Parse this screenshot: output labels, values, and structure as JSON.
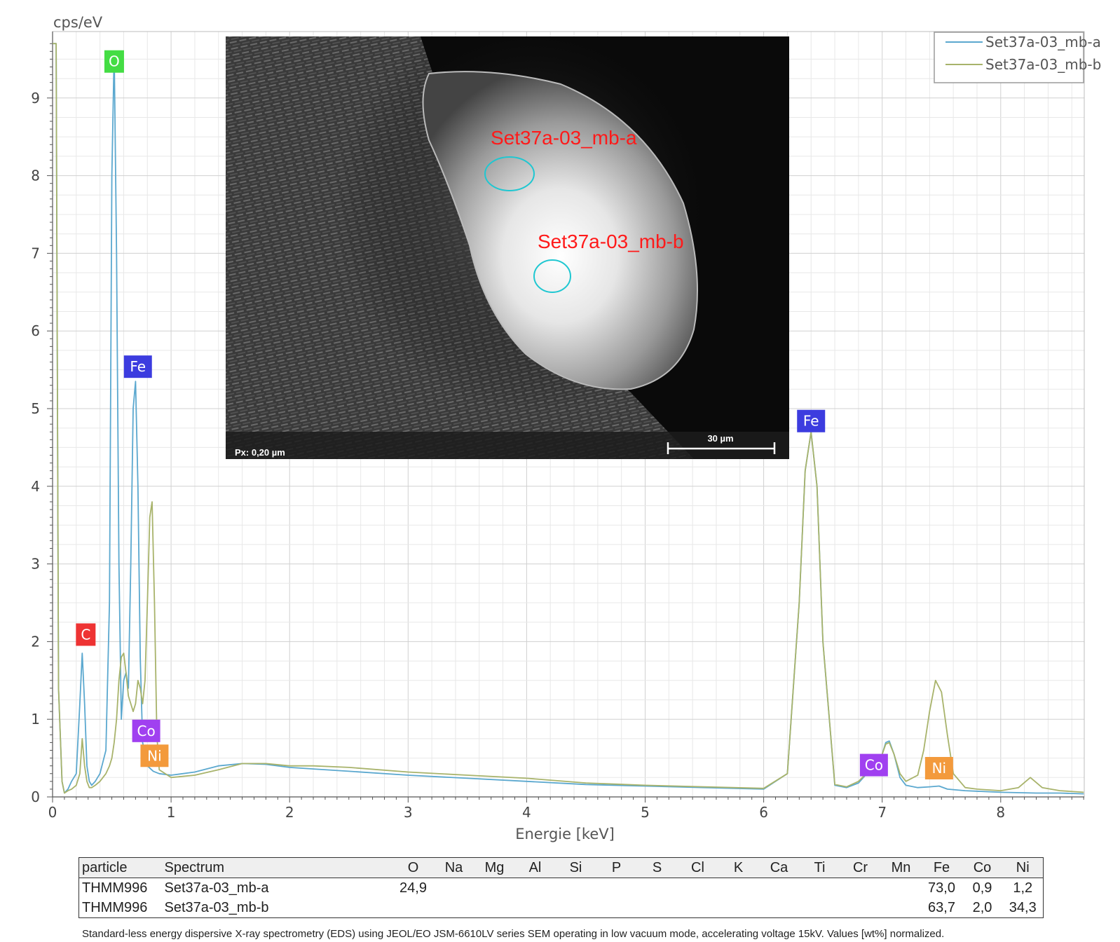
{
  "chart_data": {
    "type": "line",
    "title": "",
    "xlabel": "Energie [keV]",
    "ylabel": "cps/eV",
    "xlim": [
      0,
      8.7
    ],
    "ylim": [
      0,
      9.7
    ],
    "x_ticks": [
      "0",
      "1",
      "2",
      "3",
      "4",
      "5",
      "6",
      "7",
      "8"
    ],
    "y_ticks": [
      "0",
      "1",
      "2",
      "3",
      "4",
      "5",
      "6",
      "7",
      "8",
      "9"
    ],
    "grid": true,
    "legend_position": "top-right",
    "series": [
      {
        "name": "Set37a-03_mb-a",
        "color": "#5ba8cf",
        "x": [
          0.0,
          0.03,
          0.05,
          0.08,
          0.1,
          0.13,
          0.16,
          0.2,
          0.23,
          0.25,
          0.27,
          0.29,
          0.31,
          0.33,
          0.36,
          0.4,
          0.45,
          0.48,
          0.5,
          0.52,
          0.54,
          0.56,
          0.58,
          0.6,
          0.62,
          0.64,
          0.66,
          0.68,
          0.7,
          0.72,
          0.74,
          0.76,
          0.8,
          0.85,
          0.9,
          1.0,
          1.2,
          1.4,
          1.6,
          1.8,
          2.0,
          2.2,
          2.5,
          3.0,
          3.5,
          4.0,
          4.5,
          5.0,
          5.5,
          6.0,
          6.2,
          6.3,
          6.35,
          6.4,
          6.45,
          6.5,
          6.6,
          6.7,
          6.8,
          6.9,
          7.0,
          7.03,
          7.06,
          7.1,
          7.15,
          7.2,
          7.3,
          7.4,
          7.48,
          7.55,
          7.7,
          8.0,
          8.3,
          8.5,
          8.7
        ],
        "y": [
          9.7,
          9.7,
          1.4,
          0.2,
          0.05,
          0.1,
          0.2,
          0.3,
          1.2,
          1.85,
          1.2,
          0.4,
          0.2,
          0.15,
          0.2,
          0.3,
          0.6,
          2.5,
          8.0,
          9.6,
          7.0,
          3.0,
          1.0,
          1.5,
          1.6,
          1.4,
          3.0,
          5.0,
          5.35,
          4.0,
          1.8,
          0.7,
          0.4,
          0.33,
          0.3,
          0.28,
          0.32,
          0.4,
          0.43,
          0.42,
          0.38,
          0.36,
          0.33,
          0.28,
          0.24,
          0.2,
          0.16,
          0.14,
          0.12,
          0.1,
          0.3,
          2.5,
          4.2,
          4.7,
          4.0,
          2.0,
          0.15,
          0.12,
          0.18,
          0.35,
          0.55,
          0.7,
          0.72,
          0.55,
          0.25,
          0.15,
          0.12,
          0.13,
          0.14,
          0.1,
          0.08,
          0.06,
          0.05,
          0.05,
          0.04
        ]
      },
      {
        "name": "Set37a-03_mb-b",
        "color": "#a8b36b",
        "x": [
          0.0,
          0.03,
          0.05,
          0.08,
          0.1,
          0.13,
          0.16,
          0.2,
          0.23,
          0.25,
          0.27,
          0.29,
          0.31,
          0.33,
          0.36,
          0.4,
          0.45,
          0.48,
          0.5,
          0.52,
          0.54,
          0.56,
          0.58,
          0.6,
          0.62,
          0.64,
          0.66,
          0.68,
          0.7,
          0.72,
          0.74,
          0.76,
          0.78,
          0.8,
          0.82,
          0.84,
          0.86,
          0.88,
          0.9,
          1.0,
          1.2,
          1.4,
          1.6,
          1.8,
          2.0,
          2.2,
          2.5,
          3.0,
          3.5,
          4.0,
          4.5,
          5.0,
          5.5,
          6.0,
          6.2,
          6.3,
          6.35,
          6.4,
          6.45,
          6.5,
          6.6,
          6.7,
          6.8,
          6.9,
          7.0,
          7.03,
          7.06,
          7.1,
          7.15,
          7.2,
          7.3,
          7.35,
          7.4,
          7.45,
          7.5,
          7.55,
          7.6,
          7.7,
          7.8,
          8.0,
          8.15,
          8.25,
          8.35,
          8.5,
          8.7
        ],
        "y": [
          9.7,
          9.7,
          1.4,
          0.2,
          0.05,
          0.08,
          0.1,
          0.15,
          0.3,
          0.75,
          0.4,
          0.2,
          0.12,
          0.12,
          0.15,
          0.2,
          0.3,
          0.4,
          0.5,
          0.7,
          1.0,
          1.5,
          1.8,
          1.85,
          1.6,
          1.3,
          1.2,
          1.1,
          1.2,
          1.5,
          1.4,
          1.2,
          1.5,
          2.5,
          3.6,
          3.8,
          2.5,
          0.8,
          0.35,
          0.25,
          0.28,
          0.35,
          0.43,
          0.43,
          0.4,
          0.4,
          0.38,
          0.32,
          0.28,
          0.24,
          0.18,
          0.15,
          0.13,
          0.11,
          0.3,
          2.5,
          4.2,
          4.7,
          4.0,
          2.0,
          0.16,
          0.13,
          0.2,
          0.35,
          0.55,
          0.68,
          0.7,
          0.55,
          0.3,
          0.2,
          0.28,
          0.6,
          1.1,
          1.5,
          1.35,
          0.8,
          0.3,
          0.12,
          0.1,
          0.08,
          0.12,
          0.25,
          0.12,
          0.08,
          0.06
        ]
      }
    ],
    "annotations": [
      {
        "label": "O",
        "x": 0.52,
        "y": 9.47,
        "color": "#44dd44"
      },
      {
        "label": "Fe",
        "x": 0.72,
        "y": 5.54,
        "color": "#3c3cdf"
      },
      {
        "label": "C",
        "x": 0.28,
        "y": 2.09,
        "color": "#ee3333"
      },
      {
        "label": "Co",
        "x": 0.79,
        "y": 0.85,
        "color": "#a040f0"
      },
      {
        "label": "Ni",
        "x": 0.86,
        "y": 0.53,
        "color": "#f39a3c"
      },
      {
        "label": "Fe",
        "x": 6.4,
        "y": 4.84,
        "color": "#3c3cdf"
      },
      {
        "label": "Co",
        "x": 6.93,
        "y": 0.41,
        "color": "#a040f0"
      },
      {
        "label": "Ni",
        "x": 7.48,
        "y": 0.37,
        "color": "#f39a3c"
      }
    ]
  },
  "sem_image": {
    "labels": [
      "Set37a-03_mb-a",
      "Set37a-03_mb-b"
    ],
    "pixel_size": "Px: 0,20 µm",
    "scale_bar": "30 µm"
  },
  "table": {
    "columns": [
      "particle",
      "Spectrum",
      "O",
      "Na",
      "Mg",
      "Al",
      "Si",
      "P",
      "S",
      "Cl",
      "K",
      "Ca",
      "Ti",
      "Cr",
      "Mn",
      "Fe",
      "Co",
      "Ni"
    ],
    "rows": [
      [
        "THMM996",
        "Set37a-03_mb-a",
        "24,9",
        "",
        "",
        "",
        "",
        "",
        "",
        "",
        "",
        "",
        "",
        "",
        "",
        "73,0",
        "0,9",
        "1,2"
      ],
      [
        "THMM996",
        "Set37a-03_mb-b",
        "",
        "",
        "",
        "",
        "",
        "",
        "",
        "",
        "",
        "",
        "",
        "",
        "",
        "63,7",
        "2,0",
        "34,3"
      ]
    ]
  },
  "footnote": "Standard-less energy dispersive X-ray spectrometry (EDS) using JEOL/EO JSM-6610LV series SEM operating in low vacuum mode, accelerating voltage 15kV. Values [wt%] normalized."
}
